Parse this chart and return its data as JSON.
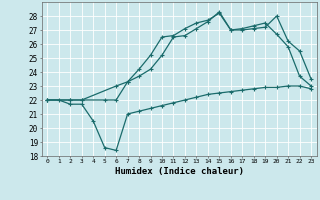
{
  "xlabel": "Humidex (Indice chaleur)",
  "bg_color": "#cce8ec",
  "grid_color": "#b0d0d8",
  "line_color": "#1a6b6b",
  "xlim": [
    -0.5,
    23.5
  ],
  "ylim": [
    18,
    29
  ],
  "yticks": [
    18,
    19,
    20,
    21,
    22,
    23,
    24,
    25,
    26,
    27,
    28
  ],
  "xticks": [
    0,
    1,
    2,
    3,
    4,
    5,
    6,
    7,
    8,
    9,
    10,
    11,
    12,
    13,
    14,
    15,
    16,
    17,
    18,
    19,
    20,
    21,
    22,
    23
  ],
  "line1_x": [
    0,
    1,
    2,
    3,
    4,
    5,
    6,
    7,
    8,
    9,
    10,
    11,
    12,
    13,
    14,
    15,
    16,
    17,
    18,
    19,
    20,
    21,
    22,
    23
  ],
  "line1_y": [
    22.0,
    22.0,
    21.7,
    21.7,
    20.5,
    18.6,
    18.4,
    21.0,
    21.2,
    21.4,
    21.6,
    21.8,
    22.0,
    22.2,
    22.4,
    22.5,
    22.6,
    22.7,
    22.8,
    22.9,
    22.9,
    23.0,
    23.0,
    22.8
  ],
  "line2_x": [
    0,
    2,
    3,
    6,
    7,
    8,
    9,
    10,
    11,
    12,
    13,
    14,
    15,
    16,
    17,
    18,
    19,
    20,
    21,
    22,
    23
  ],
  "line2_y": [
    22.0,
    22.0,
    22.0,
    23.0,
    23.3,
    24.2,
    25.2,
    26.5,
    26.6,
    27.1,
    27.5,
    27.7,
    28.2,
    27.0,
    27.0,
    27.1,
    27.2,
    28.0,
    26.2,
    25.5,
    23.5
  ],
  "line3_x": [
    0,
    2,
    3,
    5,
    6,
    7,
    8,
    9,
    10,
    11,
    12,
    13,
    14,
    15,
    16,
    17,
    18,
    19,
    20,
    21,
    22,
    23
  ],
  "line3_y": [
    22.0,
    22.0,
    22.0,
    22.0,
    22.0,
    23.3,
    23.7,
    24.2,
    25.2,
    26.5,
    26.6,
    27.1,
    27.6,
    28.3,
    27.0,
    27.1,
    27.3,
    27.5,
    26.7,
    25.8,
    23.7,
    23.0
  ]
}
